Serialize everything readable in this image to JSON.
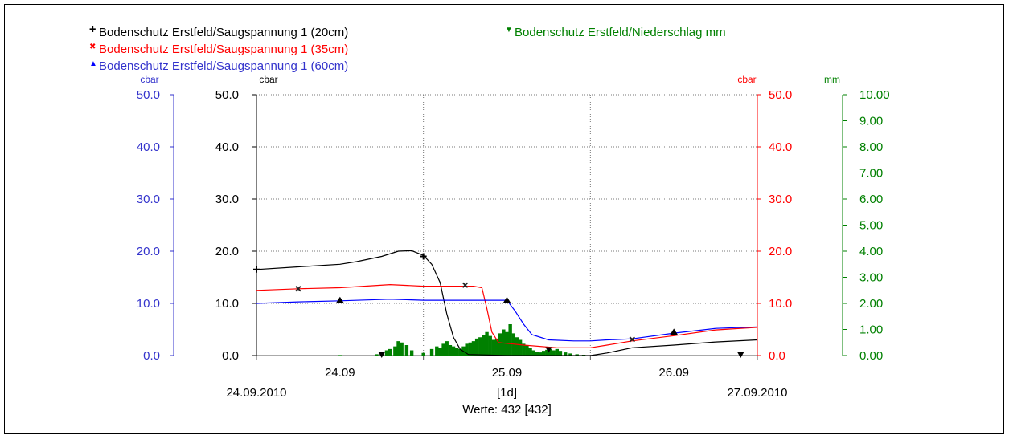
{
  "chart_data": {
    "type": "line",
    "legend": [
      {
        "label": "Bodenschutz Erstfeld/Saugspannung 1 (20cm)",
        "color": "#000000",
        "marker": "+"
      },
      {
        "label": "Bodenschutz Erstfeld/Saugspannung 1 (35cm)",
        "color": "#ff0000",
        "marker": "×"
      },
      {
        "label": "Bodenschutz Erstfeld/Saugspannung 1 (60cm)",
        "color": "#0000ff",
        "marker": "▲"
      },
      {
        "label": "Bodenschutz Erstfeld/Niederschlag mm",
        "color": "#008000",
        "marker": "▼"
      }
    ],
    "axes": {
      "left_blue": {
        "unit": "cbar",
        "range": [
          0,
          50
        ],
        "ticks": [
          "0.0",
          "10.0",
          "20.0",
          "30.0",
          "40.0",
          "50.0"
        ],
        "color": "#3333cc"
      },
      "left_black": {
        "unit": "cbar",
        "range": [
          0,
          50
        ],
        "ticks": [
          "0.0",
          "10.0",
          "20.0",
          "30.0",
          "40.0",
          "50.0"
        ],
        "color": "#000000"
      },
      "right_red": {
        "unit": "cbar",
        "range": [
          0,
          50
        ],
        "ticks": [
          "0.0",
          "10.0",
          "20.0",
          "30.0",
          "40.0",
          "50.0"
        ],
        "color": "#ff0000"
      },
      "right_green": {
        "unit": "mm",
        "range": [
          0,
          10
        ],
        "ticks": [
          "0.00",
          "1.00",
          "2.00",
          "3.00",
          "4.00",
          "5.00",
          "6.00",
          "7.00",
          "8.00",
          "9.00",
          "10.00"
        ],
        "color": "#008000"
      },
      "x": {
        "range_days": [
          0,
          3
        ],
        "day_labels": [
          {
            "t": 0.5,
            "label": "24.09"
          },
          {
            "t": 1.5,
            "label": "25.09"
          },
          {
            "t": 2.5,
            "label": "26.09"
          }
        ],
        "start_label": "24.09.2010",
        "end_label": "27.09.2010",
        "interval_label": "[1d]",
        "count_label": "Werte: 432 [432]"
      },
      "grid": true
    },
    "series": [
      {
        "name": "Bodenschutz Erstfeld/Saugspannung 1 (20cm)",
        "axis": "left_black",
        "color": "#000000",
        "marker": "+",
        "points": [
          [
            0,
            16.5
          ],
          [
            0.25,
            17.0
          ],
          [
            0.5,
            17.5
          ],
          [
            0.6,
            18.0
          ],
          [
            0.75,
            19.0
          ],
          [
            0.85,
            20.0
          ],
          [
            0.93,
            20.1
          ],
          [
            1.0,
            19.2
          ],
          [
            1.05,
            17.5
          ],
          [
            1.1,
            14.0
          ],
          [
            1.14,
            8.0
          ],
          [
            1.18,
            3.5
          ],
          [
            1.22,
            1.2
          ],
          [
            1.27,
            0.2
          ],
          [
            1.5,
            0.0
          ],
          [
            1.8,
            0.0
          ],
          [
            2.0,
            0.0
          ],
          [
            2.1,
            0.5
          ],
          [
            2.25,
            1.5
          ],
          [
            2.5,
            2.0
          ],
          [
            2.75,
            2.6
          ],
          [
            3.0,
            3.0
          ]
        ],
        "markers": [
          [
            0,
            16.5
          ],
          [
            1.0,
            19.0
          ]
        ]
      },
      {
        "name": "Bodenschutz Erstfeld/Saugspannung 1 (35cm)",
        "axis": "right_red",
        "color": "#ff0000",
        "marker": "×",
        "points": [
          [
            0,
            12.5
          ],
          [
            0.25,
            12.8
          ],
          [
            0.5,
            13.0
          ],
          [
            0.8,
            13.6
          ],
          [
            1.0,
            13.3
          ],
          [
            1.3,
            13.3
          ],
          [
            1.35,
            13.0
          ],
          [
            1.38,
            9.0
          ],
          [
            1.41,
            4.5
          ],
          [
            1.45,
            2.5
          ],
          [
            1.6,
            2.0
          ],
          [
            1.8,
            1.5
          ],
          [
            1.9,
            1.5
          ],
          [
            2.0,
            1.5
          ],
          [
            2.1,
            2.0
          ],
          [
            2.25,
            2.8
          ],
          [
            2.5,
            3.8
          ],
          [
            2.75,
            4.9
          ],
          [
            3.0,
            5.4
          ]
        ],
        "markers": [
          [
            0.25,
            12.8
          ],
          [
            1.25,
            13.5
          ],
          [
            2.25,
            3.1
          ]
        ]
      },
      {
        "name": "Bodenschutz Erstfeld/Saugspannung 1 (60cm)",
        "axis": "left_blue",
        "color": "#0000ff",
        "marker": "▲",
        "points": [
          [
            0,
            10.0
          ],
          [
            0.25,
            10.3
          ],
          [
            0.5,
            10.5
          ],
          [
            0.8,
            10.8
          ],
          [
            1.0,
            10.6
          ],
          [
            1.5,
            10.6
          ],
          [
            1.55,
            8.5
          ],
          [
            1.6,
            6.0
          ],
          [
            1.65,
            4.0
          ],
          [
            1.75,
            3.0
          ],
          [
            1.9,
            2.8
          ],
          [
            2.0,
            2.8
          ],
          [
            2.1,
            3.0
          ],
          [
            2.25,
            3.2
          ],
          [
            2.5,
            4.3
          ],
          [
            2.75,
            5.2
          ],
          [
            3.0,
            5.5
          ]
        ],
        "markers": [
          [
            0.5,
            10.5
          ],
          [
            1.5,
            10.5
          ],
          [
            2.5,
            4.4
          ]
        ]
      },
      {
        "name": "Bodenschutz Erstfeld/Niederschlag mm",
        "axis": "right_green",
        "color": "#008000",
        "marker": "▼",
        "bars": [
          [
            0.5,
            0.02
          ],
          [
            0.72,
            0.05
          ],
          [
            0.75,
            0.12
          ],
          [
            0.78,
            0.2
          ],
          [
            0.8,
            0.25
          ],
          [
            0.83,
            0.35
          ],
          [
            0.85,
            0.55
          ],
          [
            0.87,
            0.5
          ],
          [
            0.9,
            0.4
          ],
          [
            0.93,
            0.2
          ],
          [
            1.0,
            0.1
          ],
          [
            1.05,
            0.25
          ],
          [
            1.08,
            0.35
          ],
          [
            1.1,
            0.3
          ],
          [
            1.12,
            0.45
          ],
          [
            1.14,
            0.55
          ],
          [
            1.16,
            0.4
          ],
          [
            1.18,
            0.35
          ],
          [
            1.2,
            0.3
          ],
          [
            1.22,
            0.25
          ],
          [
            1.24,
            0.35
          ],
          [
            1.26,
            0.45
          ],
          [
            1.28,
            0.5
          ],
          [
            1.3,
            0.55
          ],
          [
            1.32,
            0.65
          ],
          [
            1.34,
            0.7
          ],
          [
            1.36,
            0.8
          ],
          [
            1.38,
            0.9
          ],
          [
            1.4,
            0.75
          ],
          [
            1.42,
            0.6
          ],
          [
            1.44,
            0.65
          ],
          [
            1.46,
            0.85
          ],
          [
            1.48,
            1.0
          ],
          [
            1.5,
            0.9
          ],
          [
            1.52,
            1.2
          ],
          [
            1.54,
            0.85
          ],
          [
            1.56,
            0.7
          ],
          [
            1.58,
            0.6
          ],
          [
            1.6,
            0.45
          ],
          [
            1.62,
            0.4
          ],
          [
            1.64,
            0.3
          ],
          [
            1.66,
            0.2
          ],
          [
            1.68,
            0.15
          ],
          [
            1.7,
            0.12
          ],
          [
            1.72,
            0.18
          ],
          [
            1.74,
            0.22
          ],
          [
            1.76,
            0.25
          ],
          [
            1.78,
            0.2
          ],
          [
            1.8,
            0.25
          ],
          [
            1.82,
            0.18
          ],
          [
            1.85,
            0.12
          ],
          [
            1.88,
            0.08
          ],
          [
            1.92,
            0.05
          ],
          [
            1.96,
            0.03
          ]
        ],
        "markers": [
          [
            0.75,
            0.0
          ],
          [
            1.75,
            0.2
          ],
          [
            2.9,
            0.0
          ]
        ]
      }
    ]
  }
}
